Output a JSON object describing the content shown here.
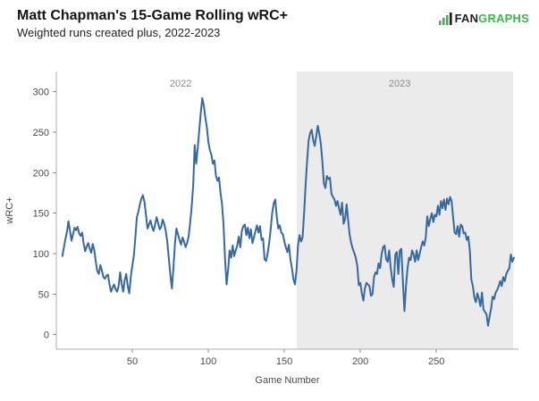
{
  "header": {
    "title": "Matt Chapman's 15-Game Rolling wRC+",
    "subtitle": "Weighted runs created plus, 2022-2023",
    "logo": {
      "fan": "FAN",
      "graphs": "GRAPHS"
    }
  },
  "colors": {
    "line": "#36699e",
    "shaded_band": "#ebebeb",
    "axis_line": "#adadad",
    "tick_mark": "#8c8c8c",
    "tick_label": "#4a4a4a",
    "axis_label": "#4a4a4a",
    "year_label": "#8a8a8a",
    "logo_green": "#3eb54b",
    "logo_dark": "#1f1f1f"
  },
  "chart_data": {
    "type": "line",
    "title": "Matt Chapman's 15-Game Rolling wRC+",
    "subtitle": "Weighted runs created plus, 2022-2023",
    "xlabel": "Game Number",
    "ylabel": "wRC+",
    "x_ticks": [
      50,
      100,
      150,
      200,
      250
    ],
    "y_ticks": [
      0,
      50,
      100,
      150,
      200,
      250,
      300
    ],
    "xlim": [
      0,
      304
    ],
    "ylim": [
      -18,
      325
    ],
    "grid": false,
    "legend": "none",
    "shaded_region": {
      "label": "2023",
      "x_start": 158.2,
      "x_end": 300.5
    },
    "annotations": [
      {
        "text": "2022",
        "x": 81.8,
        "y": 306
      },
      {
        "text": "2023",
        "x": 225.9,
        "y": 306
      }
    ],
    "series": [
      {
        "name": "wRC+",
        "points": [
          [
            4,
            97
          ],
          [
            5,
            108
          ],
          [
            6,
            118
          ],
          [
            7,
            127
          ],
          [
            8,
            140
          ],
          [
            9,
            128
          ],
          [
            10,
            116
          ],
          [
            11,
            124
          ],
          [
            12,
            132
          ],
          [
            13,
            129
          ],
          [
            14,
            133
          ],
          [
            15,
            125
          ],
          [
            16,
            122
          ],
          [
            17,
            126
          ],
          [
            18,
            112
          ],
          [
            19,
            103
          ],
          [
            20,
            109
          ],
          [
            21,
            113
          ],
          [
            22,
            106
          ],
          [
            23,
            101
          ],
          [
            24,
            112
          ],
          [
            25,
            104
          ],
          [
            26,
            90
          ],
          [
            27,
            78
          ],
          [
            28,
            75
          ],
          [
            29,
            86
          ],
          [
            30,
            79
          ],
          [
            31,
            71
          ],
          [
            32,
            69
          ],
          [
            33,
            73
          ],
          [
            34,
            74
          ],
          [
            35,
            62
          ],
          [
            36,
            53
          ],
          [
            37,
            58
          ],
          [
            38,
            62
          ],
          [
            39,
            56
          ],
          [
            40,
            53
          ],
          [
            41,
            60
          ],
          [
            42,
            77
          ],
          [
            43,
            63
          ],
          [
            44,
            53
          ],
          [
            45,
            67
          ],
          [
            46,
            75
          ],
          [
            47,
            60
          ],
          [
            48,
            51
          ],
          [
            49,
            71
          ],
          [
            50,
            85
          ],
          [
            51,
            97
          ],
          [
            52,
            120
          ],
          [
            53,
            145
          ],
          [
            54,
            152
          ],
          [
            55,
            161
          ],
          [
            56,
            168
          ],
          [
            57,
            172
          ],
          [
            58,
            164
          ],
          [
            59,
            148
          ],
          [
            60,
            131
          ],
          [
            61,
            136
          ],
          [
            62,
            141
          ],
          [
            63,
            133
          ],
          [
            64,
            128
          ],
          [
            65,
            136
          ],
          [
            66,
            145
          ],
          [
            67,
            138
          ],
          [
            68,
            130
          ],
          [
            69,
            133
          ],
          [
            70,
            142
          ],
          [
            71,
            137
          ],
          [
            72,
            128
          ],
          [
            73,
            115
          ],
          [
            74,
            95
          ],
          [
            75,
            75
          ],
          [
            76,
            57
          ],
          [
            77,
            82
          ],
          [
            78,
            112
          ],
          [
            79,
            131
          ],
          [
            80,
            124
          ],
          [
            81,
            117
          ],
          [
            82,
            111
          ],
          [
            83,
            120
          ],
          [
            84,
            115
          ],
          [
            85,
            108
          ],
          [
            86,
            113
          ],
          [
            87,
            121
          ],
          [
            88,
            138
          ],
          [
            89,
            158
          ],
          [
            90,
            183
          ],
          [
            91,
            234
          ],
          [
            92,
            211
          ],
          [
            93,
            230
          ],
          [
            94,
            252
          ],
          [
            95,
            274
          ],
          [
            96,
            292
          ],
          [
            97,
            283
          ],
          [
            98,
            268
          ],
          [
            99,
            256
          ],
          [
            100,
            238
          ],
          [
            101,
            228
          ],
          [
            102,
            222
          ],
          [
            103,
            211
          ],
          [
            104,
            215
          ],
          [
            105,
            196
          ],
          [
            106,
            190
          ],
          [
            107,
            194
          ],
          [
            108,
            175
          ],
          [
            109,
            161
          ],
          [
            110,
            135
          ],
          [
            111,
            93
          ],
          [
            112,
            62
          ],
          [
            113,
            80
          ],
          [
            114,
            104
          ],
          [
            115,
            95
          ],
          [
            116,
            110
          ],
          [
            117,
            97
          ],
          [
            118,
            104
          ],
          [
            119,
            110
          ],
          [
            120,
            121
          ],
          [
            121,
            108
          ],
          [
            122,
            128
          ],
          [
            123,
            134
          ],
          [
            124,
            136
          ],
          [
            125,
            123
          ],
          [
            126,
            132
          ],
          [
            127,
            119
          ],
          [
            128,
            130
          ],
          [
            129,
            113
          ],
          [
            130,
            120
          ],
          [
            131,
            128
          ],
          [
            132,
            135
          ],
          [
            133,
            126
          ],
          [
            134,
            134
          ],
          [
            135,
            117
          ],
          [
            136,
            119
          ],
          [
            137,
            93
          ],
          [
            138,
            91
          ],
          [
            139,
            100
          ],
          [
            140,
            113
          ],
          [
            141,
            130
          ],
          [
            142,
            150
          ],
          [
            143,
            162
          ],
          [
            144,
            167
          ],
          [
            145,
            146
          ],
          [
            146,
            131
          ],
          [
            147,
            135
          ],
          [
            148,
            126
          ],
          [
            149,
            124
          ],
          [
            150,
            115
          ],
          [
            151,
            108
          ],
          [
            152,
            102
          ],
          [
            153,
            111
          ],
          [
            154,
            93
          ],
          [
            155,
            82
          ],
          [
            156,
            68
          ],
          [
            157,
            62
          ],
          [
            158,
            79
          ],
          [
            159,
            110
          ],
          [
            160,
            123
          ],
          [
            161,
            115
          ],
          [
            162,
            120
          ],
          [
            163,
            150
          ],
          [
            164,
            185
          ],
          [
            165,
            215
          ],
          [
            166,
            240
          ],
          [
            167,
            249
          ],
          [
            168,
            253
          ],
          [
            169,
            240
          ],
          [
            170,
            233
          ],
          [
            171,
            245
          ],
          [
            172,
            258
          ],
          [
            173,
            248
          ],
          [
            174,
            236
          ],
          [
            175,
            214
          ],
          [
            176,
            187
          ],
          [
            177,
            181
          ],
          [
            178,
            196
          ],
          [
            179,
            192
          ],
          [
            180,
            194
          ],
          [
            181,
            174
          ],
          [
            182,
            170
          ],
          [
            183,
            167
          ],
          [
            184,
            159
          ],
          [
            185,
            165
          ],
          [
            186,
            156
          ],
          [
            187,
            148
          ],
          [
            188,
            163
          ],
          [
            189,
            137
          ],
          [
            190,
            143
          ],
          [
            191,
            161
          ],
          [
            192,
            141
          ],
          [
            193,
            123
          ],
          [
            194,
            113
          ],
          [
            195,
            106
          ],
          [
            196,
            101
          ],
          [
            197,
            95
          ],
          [
            198,
            85
          ],
          [
            199,
            61
          ],
          [
            200,
            64
          ],
          [
            201,
            51
          ],
          [
            202,
            42
          ],
          [
            203,
            57
          ],
          [
            204,
            64
          ],
          [
            205,
            62
          ],
          [
            206,
            60
          ],
          [
            207,
            48
          ],
          [
            208,
            50
          ],
          [
            209,
            71
          ],
          [
            210,
            77
          ],
          [
            211,
            75
          ],
          [
            212,
            88
          ],
          [
            213,
            82
          ],
          [
            214,
            99
          ],
          [
            215,
            108
          ],
          [
            216,
            110
          ],
          [
            217,
            93
          ],
          [
            218,
            90
          ],
          [
            219,
            104
          ],
          [
            220,
            82
          ],
          [
            221,
            68
          ],
          [
            222,
            59
          ],
          [
            223,
            99
          ],
          [
            224,
            102
          ],
          [
            225,
            75
          ],
          [
            226,
            104
          ],
          [
            227,
            106
          ],
          [
            228,
            64
          ],
          [
            229,
            29
          ],
          [
            230,
            60
          ],
          [
            231,
            82
          ],
          [
            232,
            95
          ],
          [
            233,
            92
          ],
          [
            234,
            104
          ],
          [
            235,
            99
          ],
          [
            236,
            90
          ],
          [
            237,
            104
          ],
          [
            238,
            92
          ],
          [
            239,
            100
          ],
          [
            240,
            108
          ],
          [
            241,
            115
          ],
          [
            242,
            110
          ],
          [
            243,
            120
          ],
          [
            244,
            146
          ],
          [
            245,
            134
          ],
          [
            246,
            143
          ],
          [
            247,
            150
          ],
          [
            248,
            139
          ],
          [
            249,
            148
          ],
          [
            250,
            146
          ],
          [
            251,
            159
          ],
          [
            252,
            148
          ],
          [
            253,
            165
          ],
          [
            254,
            156
          ],
          [
            255,
            167
          ],
          [
            256,
            154
          ],
          [
            257,
            168
          ],
          [
            258,
            161
          ],
          [
            259,
            170
          ],
          [
            260,
            165
          ],
          [
            261,
            145
          ],
          [
            262,
            126
          ],
          [
            263,
            124
          ],
          [
            264,
            134
          ],
          [
            265,
            121
          ],
          [
            266,
            136
          ],
          [
            267,
            134
          ],
          [
            268,
            125
          ],
          [
            269,
            126
          ],
          [
            270,
            117
          ],
          [
            271,
            121
          ],
          [
            272,
            104
          ],
          [
            273,
            68
          ],
          [
            274,
            60
          ],
          [
            275,
            46
          ],
          [
            276,
            40
          ],
          [
            277,
            51
          ],
          [
            278,
            44
          ],
          [
            279,
            35
          ],
          [
            280,
            52
          ],
          [
            281,
            31
          ],
          [
            282,
            28
          ],
          [
            283,
            25
          ],
          [
            284,
            11
          ],
          [
            285,
            22
          ],
          [
            286,
            32
          ],
          [
            287,
            47
          ],
          [
            288,
            44
          ],
          [
            289,
            52
          ],
          [
            290,
            55
          ],
          [
            291,
            60
          ],
          [
            292,
            66
          ],
          [
            293,
            60
          ],
          [
            294,
            71
          ],
          [
            295,
            66
          ],
          [
            296,
            75
          ],
          [
            297,
            79
          ],
          [
            298,
            82
          ],
          [
            299,
            99
          ],
          [
            300,
            90
          ],
          [
            301,
            95
          ]
        ]
      }
    ]
  }
}
